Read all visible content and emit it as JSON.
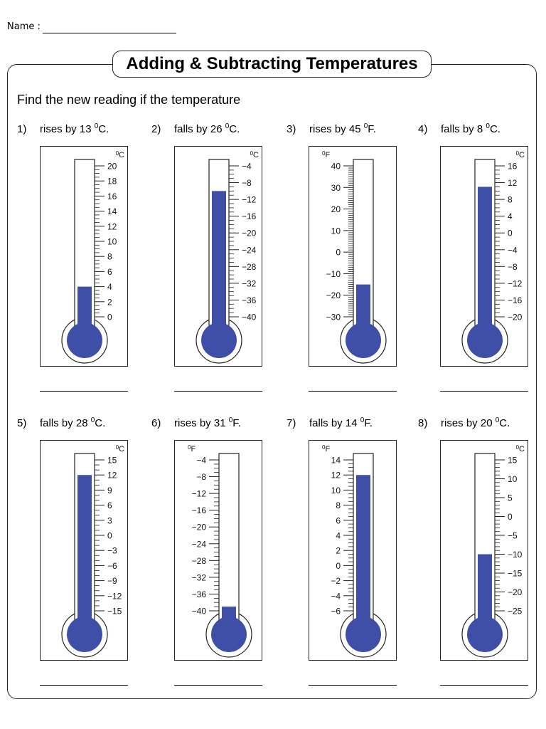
{
  "header": {
    "name_label": "Name :"
  },
  "title": "Adding & Subtracting Temperatures",
  "instructions": "Find the new reading if the temperature",
  "colors": {
    "mercury": "#3f4fa8",
    "ink": "#222222"
  },
  "questions": [
    {
      "number": "1)",
      "text": "rises by 13",
      "unit": "C.",
      "scale_unit": "C",
      "ticks": [
        "20",
        "18",
        "16",
        "14",
        "12",
        "10",
        "8",
        "6",
        "4",
        "2",
        "0"
      ],
      "label_side": "right",
      "minor_per_major": 4,
      "reading": "4"
    },
    {
      "number": "2)",
      "text": "falls by 26",
      "unit": "C.",
      "scale_unit": "C",
      "ticks": [
        "−4",
        "−8",
        "−12",
        "−16",
        "−20",
        "−24",
        "−28",
        "−32",
        "−36",
        "−40"
      ],
      "label_side": "right",
      "minor_per_major": 4,
      "reading": "−10"
    },
    {
      "number": "3)",
      "text": "rises by 45",
      "unit": "F.",
      "scale_unit": "F",
      "ticks": [
        "40",
        "30",
        "20",
        "10",
        "0",
        "−10",
        "−20",
        "−30"
      ],
      "label_side": "left",
      "minor_per_major": 10,
      "reading": "−15"
    },
    {
      "number": "4)",
      "text": "falls by 8",
      "unit": "C.",
      "scale_unit": "C",
      "ticks": [
        "16",
        "12",
        "8",
        "4",
        "0",
        "−4",
        "−8",
        "−12",
        "−16",
        "−20"
      ],
      "label_side": "right",
      "minor_per_major": 4,
      "reading": "11"
    },
    {
      "number": "5)",
      "text": "falls by 28",
      "unit": "C.",
      "scale_unit": "C",
      "ticks": [
        "15",
        "12",
        "9",
        "6",
        "3",
        "0",
        "−3",
        "−6",
        "−9",
        "−12",
        "−15"
      ],
      "label_side": "right",
      "minor_per_major": 3,
      "reading": "12"
    },
    {
      "number": "6)",
      "text": "rises by 31",
      "unit": "F.",
      "scale_unit": "F",
      "ticks": [
        "−4",
        "−8",
        "−12",
        "−16",
        "−20",
        "−24",
        "−28",
        "−32",
        "−36",
        "−40"
      ],
      "label_side": "left",
      "minor_per_major": 4,
      "reading": "−39"
    },
    {
      "number": "7)",
      "text": "falls by 14",
      "unit": "F.",
      "scale_unit": "F",
      "ticks": [
        "14",
        "12",
        "10",
        "8",
        "6",
        "4",
        "2",
        "0",
        "−2",
        "−4",
        "−6"
      ],
      "label_side": "left",
      "minor_per_major": 4,
      "reading": "12"
    },
    {
      "number": "8)",
      "text": "rises by 20",
      "unit": "C.",
      "scale_unit": "C",
      "ticks": [
        "15",
        "10",
        "5",
        "0",
        "−5",
        "−10",
        "−15",
        "−20",
        "−25"
      ],
      "label_side": "right",
      "minor_per_major": 5,
      "reading": "−10"
    }
  ]
}
